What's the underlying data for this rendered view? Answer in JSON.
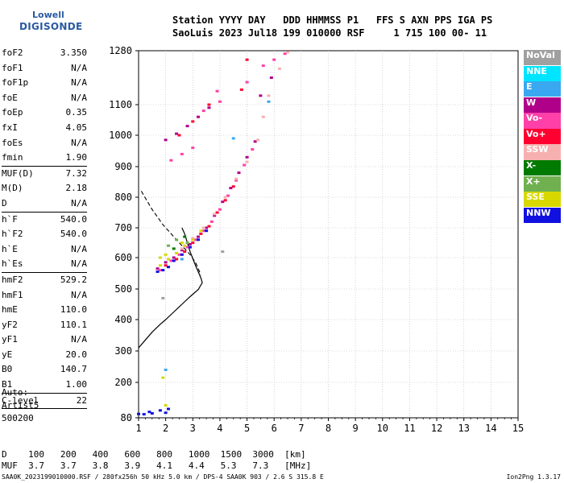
{
  "logo": {
    "line1": "Lowell",
    "line2": "DIGISONDE"
  },
  "header": {
    "line1": "Station YYYY DAY   DDD HHMMSS P1   FFS S AXN PPS IGA PS",
    "line2": "SaoLuis 2023 Jul18 199 010000 RSF     1 715 100 00- 11"
  },
  "params": [
    {
      "key": "foF2",
      "value": "3.350"
    },
    {
      "key": "foF1",
      "value": "N/A"
    },
    {
      "key": "foF1p",
      "value": "N/A"
    },
    {
      "key": "foE",
      "value": "N/A"
    },
    {
      "key": "foEp",
      "value": "0.35"
    },
    {
      "key": "fxI",
      "value": "4.05"
    },
    {
      "key": "foEs",
      "value": "N/A"
    },
    {
      "key": "fmin",
      "value": "1.90"
    },
    {
      "sep": true
    },
    {
      "key": "MUF(D)",
      "value": "7.32"
    },
    {
      "key": "M(D)",
      "value": "2.18"
    },
    {
      "key": "D",
      "value": "N/A"
    },
    {
      "sep": true
    },
    {
      "key": "h`F",
      "value": "540.0"
    },
    {
      "key": "h`F2",
      "value": "540.0"
    },
    {
      "key": "h`E",
      "value": "N/A"
    },
    {
      "key": "h`Es",
      "value": "N/A"
    },
    {
      "sep": true
    },
    {
      "key": "hmF2",
      "value": "529.2"
    },
    {
      "key": "hmF1",
      "value": "N/A"
    },
    {
      "key": "hmE",
      "value": "110.0"
    },
    {
      "key": "yF2",
      "value": "110.1"
    },
    {
      "key": "yF1",
      "value": "N/A"
    },
    {
      "key": "yE",
      "value": "20.0"
    },
    {
      "key": "B0",
      "value": "140.7"
    },
    {
      "key": "B1",
      "value": "1.00"
    },
    {
      "sep": true
    },
    {
      "key": "C-level",
      "value": "22"
    },
    {
      "sep": true
    }
  ],
  "auto": [
    "Auto:",
    "Artist5",
    "500200"
  ],
  "legend": [
    {
      "label": "NoVal",
      "color": "#a0a0a0"
    },
    {
      "label": "NNE",
      "color": "#00e5ff"
    },
    {
      "label": "E",
      "color": "#3aa8f0"
    },
    {
      "label": "W",
      "color": "#b0008a"
    },
    {
      "label": "Vo-",
      "color": "#ff40a8"
    },
    {
      "label": "Vo+",
      "color": "#ff0030"
    },
    {
      "label": "SSW",
      "color": "#f6b0b0"
    },
    {
      "label": "X-",
      "color": "#007a00"
    },
    {
      "label": "X+",
      "color": "#70b050"
    },
    {
      "label": "SSE",
      "color": "#d8d800"
    },
    {
      "label": "NNW",
      "color": "#1010e0"
    }
  ],
  "distance_table": {
    "d_label": "D",
    "muf_label": "MUF",
    "d_values": [
      "100",
      "200",
      "400",
      "600",
      "800",
      "1000",
      "1500",
      "3000"
    ],
    "d_unit": "[km]",
    "muf_values": [
      "3.7",
      "3.7",
      "3.8",
      "3.9",
      "4.1",
      "4.4",
      "5.3",
      "7.3"
    ],
    "muf_unit": "[MHz]"
  },
  "footer": "SAA0K_2023199010000.RSF / 280fx256h 50 kHz 5.0 km / DPS-4 SAA0K 903 / 2.6 S 315.8 E",
  "version": "Ion2Png 1.3.17",
  "chart_data": {
    "type": "scatter",
    "title": "",
    "xlabel": "",
    "ylabel": "",
    "xlim": [
      1,
      15
    ],
    "ylim": [
      80,
      1280
    ],
    "xticks": [
      "1",
      "2",
      "3",
      "4",
      "5",
      "6",
      "7",
      "8",
      "9",
      "10",
      "11",
      "12",
      "13",
      "14",
      "15"
    ],
    "yticks": [
      "80",
      "200",
      "300",
      "400",
      "500",
      "600",
      "700",
      "800",
      "900",
      "1000",
      "1100",
      "1280"
    ],
    "ytick_values": [
      80,
      200,
      300,
      400,
      500,
      600,
      700,
      800,
      900,
      1000,
      1100,
      1280
    ],
    "grid": true,
    "series": [
      {
        "name": "W",
        "color": "#b0008a",
        "points": [
          [
            1.7,
            565
          ],
          [
            2.0,
            585
          ],
          [
            2.3,
            600
          ],
          [
            2.6,
            625
          ],
          [
            2.9,
            645
          ],
          [
            3.2,
            670
          ],
          [
            3.5,
            700
          ],
          [
            3.8,
            740
          ],
          [
            4.1,
            785
          ],
          [
            4.4,
            830
          ],
          [
            4.7,
            880
          ],
          [
            5.0,
            930
          ],
          [
            5.3,
            980
          ],
          [
            2.0,
            985
          ],
          [
            2.4,
            1005
          ],
          [
            2.8,
            1030
          ],
          [
            3.2,
            1060
          ],
          [
            3.6,
            1090
          ],
          [
            5.5,
            1130
          ],
          [
            5.9,
            1190
          ]
        ]
      },
      {
        "name": "Vo-",
        "color": "#ff40a8",
        "points": [
          [
            1.8,
            560
          ],
          [
            2.2,
            590
          ],
          [
            2.5,
            610
          ],
          [
            2.8,
            635
          ],
          [
            3.1,
            660
          ],
          [
            3.4,
            690
          ],
          [
            3.7,
            720
          ],
          [
            4.0,
            760
          ],
          [
            4.3,
            805
          ],
          [
            4.6,
            855
          ],
          [
            4.9,
            905
          ],
          [
            5.2,
            955
          ],
          [
            2.2,
            920
          ],
          [
            2.6,
            940
          ],
          [
            3.0,
            960
          ],
          [
            3.4,
            1080
          ],
          [
            4.0,
            1110
          ],
          [
            5.0,
            1175
          ],
          [
            5.6,
            1230
          ],
          [
            6.0,
            1250
          ],
          [
            6.4,
            1270
          ],
          [
            3.9,
            1145
          ]
        ]
      },
      {
        "name": "Vo+",
        "color": "#ff0030",
        "points": [
          [
            2.0,
            575
          ],
          [
            2.4,
            595
          ],
          [
            2.7,
            620
          ],
          [
            3.0,
            650
          ],
          [
            3.3,
            680
          ],
          [
            3.6,
            705
          ],
          [
            3.9,
            750
          ],
          [
            4.2,
            790
          ],
          [
            4.5,
            835
          ],
          [
            2.5,
            1000
          ],
          [
            3.0,
            1045
          ],
          [
            3.6,
            1100
          ],
          [
            4.8,
            1150
          ],
          [
            5.0,
            1250
          ]
        ]
      },
      {
        "name": "SSW",
        "color": "#f6b0b0",
        "points": [
          [
            2.6,
            630
          ],
          [
            3.0,
            665
          ],
          [
            3.4,
            700
          ],
          [
            3.8,
            745
          ],
          [
            4.2,
            800
          ],
          [
            4.6,
            860
          ],
          [
            5.0,
            915
          ],
          [
            5.4,
            985
          ],
          [
            5.8,
            1130
          ],
          [
            6.2,
            1220
          ],
          [
            6.5,
            1275
          ],
          [
            5.6,
            1060
          ]
        ]
      },
      {
        "name": "SSE",
        "color": "#d8d800",
        "points": [
          [
            1.8,
            575
          ],
          [
            2.1,
            595
          ],
          [
            2.4,
            615
          ],
          [
            2.7,
            640
          ],
          [
            3.0,
            660
          ],
          [
            3.3,
            690
          ],
          [
            2.0,
            610
          ],
          [
            2.6,
            650
          ],
          [
            1.8,
            600
          ],
          [
            1.9,
            215
          ],
          [
            2.0,
            122
          ]
        ]
      },
      {
        "name": "NNW",
        "color": "#1010e0",
        "points": [
          [
            1.7,
            555
          ],
          [
            1.9,
            560
          ],
          [
            2.1,
            570
          ],
          [
            2.3,
            590
          ],
          [
            2.6,
            610
          ],
          [
            2.9,
            635
          ],
          [
            3.2,
            660
          ],
          [
            3.5,
            690
          ],
          [
            1.0,
            93
          ],
          [
            1.2,
            92
          ],
          [
            1.5,
            95
          ],
          [
            1.8,
            105
          ],
          [
            2.0,
            97
          ],
          [
            2.1,
            110
          ],
          [
            1.4,
            100
          ]
        ]
      },
      {
        "name": "X+",
        "color": "#70b050",
        "points": [
          [
            2.1,
            640
          ],
          [
            2.4,
            660
          ],
          [
            2.8,
            650
          ]
        ]
      },
      {
        "name": "X-",
        "color": "#007a00",
        "points": [
          [
            2.3,
            630
          ],
          [
            2.7,
            670
          ]
        ]
      },
      {
        "name": "E",
        "color": "#3aa8f0",
        "points": [
          [
            4.5,
            990
          ],
          [
            2.0,
            240
          ],
          [
            5.8,
            1110
          ],
          [
            2.6,
            595
          ]
        ]
      },
      {
        "name": "NoVal",
        "color": "#a0a0a0",
        "points": [
          [
            1.9,
            470
          ],
          [
            4.1,
            620
          ]
        ]
      }
    ],
    "profile_curve": [
      [
        1.0,
        310
      ],
      [
        1.2,
        330
      ],
      [
        1.5,
        360
      ],
      [
        1.8,
        385
      ],
      [
        2.0,
        400
      ],
      [
        2.3,
        425
      ],
      [
        2.6,
        450
      ],
      [
        2.9,
        475
      ],
      [
        3.2,
        498
      ],
      [
        3.35,
        520
      ],
      [
        3.3,
        535
      ],
      [
        3.1,
        575
      ],
      [
        2.9,
        620
      ],
      [
        2.7,
        680
      ],
      [
        2.6,
        700
      ]
    ],
    "profile_dashed": [
      [
        1.1,
        820
      ],
      [
        1.5,
        760
      ],
      [
        1.9,
        710
      ],
      [
        2.3,
        670
      ],
      [
        2.6,
        640
      ],
      [
        2.9,
        610
      ],
      [
        3.1,
        585
      ],
      [
        3.3,
        545
      ]
    ]
  }
}
